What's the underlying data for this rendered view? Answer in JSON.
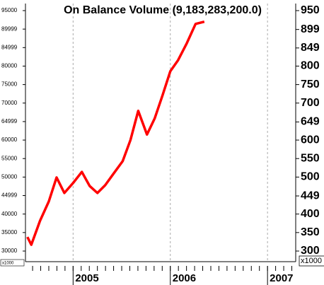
{
  "chart_data": {
    "type": "line",
    "title": "On Balance Volume (9,183,283,200.0)",
    "x": [
      2004.53,
      2004.57,
      2004.66,
      2004.75,
      2004.83,
      2004.91,
      2005.0,
      2005.09,
      2005.17,
      2005.25,
      2005.33,
      2005.41,
      2005.51,
      2005.59,
      2005.67,
      2005.76,
      2005.84,
      2005.92,
      2006.0,
      2006.08,
      2006.17,
      2006.26,
      2006.35
    ],
    "series": [
      {
        "name": "On Balance Volume",
        "color": "#ff0000",
        "values": [
          33800,
          31700,
          38200,
          43400,
          49900,
          45700,
          48400,
          51400,
          47600,
          45700,
          47800,
          50700,
          54300,
          60000,
          67900,
          61500,
          65900,
          72100,
          78600,
          81600,
          86200,
          91400,
          92000
        ]
      }
    ],
    "xlim": [
      2004.51,
      2007.29
    ],
    "xticks": [
      2005,
      2006,
      2007
    ],
    "ylim": [
      27130,
      96910
    ],
    "yticks": [
      95000,
      89999,
      84999,
      80000,
      75000,
      70000,
      64999,
      60000,
      55000,
      50000,
      44999,
      40000,
      35000,
      30000
    ],
    "y2lim": [
      271.3,
      969.1
    ],
    "y2ticks": [
      950,
      899,
      849,
      800,
      750,
      700,
      649,
      600,
      550,
      500,
      449,
      400,
      350,
      300
    ],
    "axis_unit": "x1000",
    "grid": true
  }
}
